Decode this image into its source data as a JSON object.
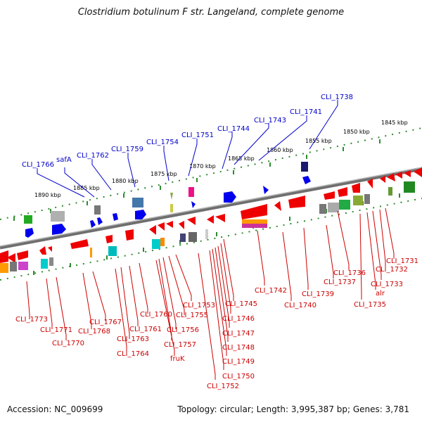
{
  "title": "Clostridium botulinum F str. Langeland, complete genome",
  "accession": "Accession: NC_009699",
  "topology": "Topology: circular; Length: 3,995,387 bp; Genes: 3,781",
  "colors": {
    "upper_label": "#0000cc",
    "lower_label": "#cc0000",
    "backbone": "#888888",
    "ticks": "#2e8b2e",
    "forward_gene": "#0000ff",
    "reverse_gene": "#ff0000"
  },
  "kbp_labels": [
    "1845 kbp",
    "1850 kbp",
    "1855 kbp",
    "1860 kbp",
    "1865 kbp",
    "1870 kbp",
    "1875 kbp",
    "1880 kbp",
    "1885 kbp",
    "1890 kbp"
  ],
  "upper_genes": [
    "CLI_1738",
    "CLI_1741",
    "CLI_1743",
    "CLI_1744",
    "CLI_1751",
    "CLI_1754",
    "CLI_1759",
    "CLI_1762",
    "safA",
    "CLI_1766"
  ],
  "lower_genes": [
    "CLI_1731",
    "CLI_1732",
    "CLI_1733",
    "alr",
    "CLI_1735",
    "CLI_1736",
    "CLI_1737",
    "CLI_1739",
    "CLI_1740",
    "CLI_1742",
    "CLI_1745",
    "CLI_1746",
    "CLI_1747",
    "CLI_1748",
    "CLI_1749",
    "CLI_1750",
    "CLI_1752",
    "CLI_1753",
    "CLI_1755",
    "CLI_1756",
    "CLI_1757",
    "fruK",
    "CLI_1760",
    "CLI_1761",
    "CLI_1763",
    "CLI_1764",
    "CLI_1767",
    "CLI_1768",
    "CLI_1770",
    "CLI_1771",
    "CLI_1773"
  ]
}
